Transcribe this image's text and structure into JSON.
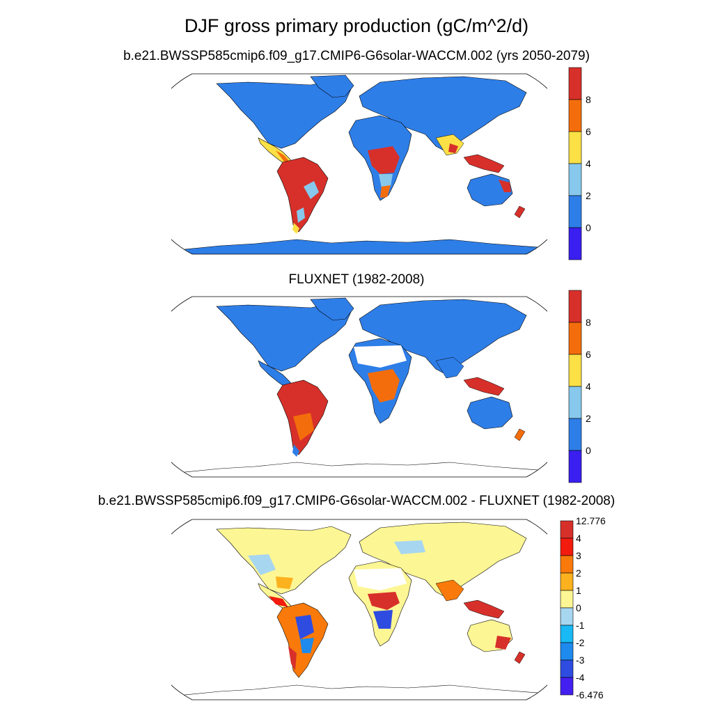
{
  "title": "DJF gross primary production (gC/m^2/d)",
  "panels": [
    {
      "subtitle": "b.e21.BWSSP585cmip6.f09_g17.CMIP6-G6solar-WACCM.002 (yrs 2050-2079)",
      "colorbar": {
        "labels": [
          "8",
          "6",
          "4",
          "2",
          "0"
        ],
        "colors": [
          "#d7302a",
          "#f46d0c",
          "#fbe046",
          "#87c8ec",
          "#2e7ee8",
          "#3a1ff0"
        ]
      }
    },
    {
      "subtitle": "FLUXNET (1982-2008)",
      "colorbar": {
        "labels": [
          "8",
          "6",
          "4",
          "2",
          "0"
        ],
        "colors": [
          "#d7302a",
          "#f46d0c",
          "#fbe046",
          "#87c8ec",
          "#2e7ee8",
          "#3a1ff0"
        ]
      }
    },
    {
      "subtitle": "b.e21.BWSSP585cmip6.f09_g17.CMIP6-G6solar-WACCM.002 - FLUXNET (1982-2008)",
      "colorbar": {
        "labels": [
          "12.776",
          "4",
          "3",
          "2",
          "1",
          "0",
          "-1",
          "-2",
          "-3",
          "-4",
          "-6.476"
        ],
        "colors": [
          "#d7302a",
          "#f21b0e",
          "#f97a0a",
          "#fbb21e",
          "#fdf694",
          "#a7d6f0",
          "#18b9f5",
          "#1e8aee",
          "#2f4ce0",
          "#4420f0"
        ]
      }
    }
  ],
  "palette": {
    "ocean": "#ffffff",
    "coast": "#000000",
    "land_low": "#2e7ee8",
    "land_high": "#d7302a",
    "diff_mild": "#fdf694"
  }
}
